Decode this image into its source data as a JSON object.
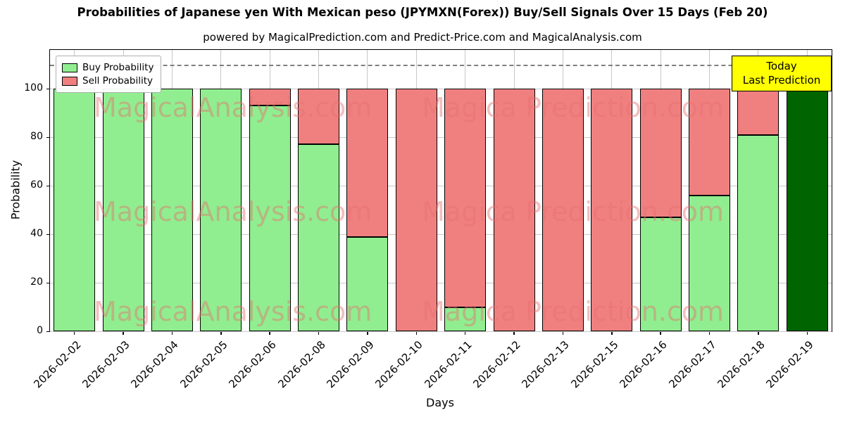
{
  "title": "Probabilities of Japanese yen With Mexican peso (JPYMXN(Forex)) Buy/Sell Signals Over 15 Days (Feb 20)",
  "subtitle": "powered by MagicalPrediction.com and Predict-Price.com and MagicalAnalysis.com",
  "legend": {
    "buy_label": "Buy Probability",
    "sell_label": "Sell Probability"
  },
  "today_box": {
    "line1": "Today",
    "line2": "Last Prediction"
  },
  "watermarks": {
    "left": "MagicalAnalysis.com",
    "right": "Magica Prediction.com"
  },
  "axes": {
    "xlabel": "Days",
    "ylabel": "Probability",
    "yticks": [
      0,
      20,
      40,
      60,
      80,
      100
    ]
  },
  "colors": {
    "buy": "#90EE90",
    "sell": "#F08080",
    "today_bar": "#006400",
    "today_box_bg": "#FFFF00",
    "grid": "#c8c8c8"
  },
  "chart_data": {
    "type": "bar",
    "stacked": true,
    "title": "Probabilities of Japanese yen With Mexican peso (JPYMXN(Forex)) Buy/Sell Signals Over 15 Days (Feb 20)",
    "xlabel": "Days",
    "ylabel": "Probability",
    "ylim": [
      0,
      116
    ],
    "dashed_line_y": 110,
    "grid": true,
    "legend_position": "upper-left",
    "categories": [
      "2026-02-02",
      "2026-02-03",
      "2026-02-04",
      "2026-02-05",
      "2026-02-06",
      "2026-02-08",
      "2026-02-09",
      "2026-02-10",
      "2026-02-11",
      "2026-02-12",
      "2026-02-13",
      "2026-02-15",
      "2026-02-16",
      "2026-02-17",
      "2026-02-18",
      "2026-02-19"
    ],
    "series": [
      {
        "name": "Buy Probability",
        "color": "#90EE90",
        "values": [
          100,
          100,
          100,
          100,
          93,
          77,
          39,
          0,
          10,
          0,
          0,
          0,
          47,
          56,
          81,
          100
        ]
      },
      {
        "name": "Sell Probability",
        "color": "#F08080",
        "values": [
          0,
          0,
          0,
          0,
          7,
          23,
          61,
          100,
          90,
          100,
          100,
          100,
          53,
          44,
          19,
          0
        ]
      }
    ],
    "today_index": 15
  }
}
